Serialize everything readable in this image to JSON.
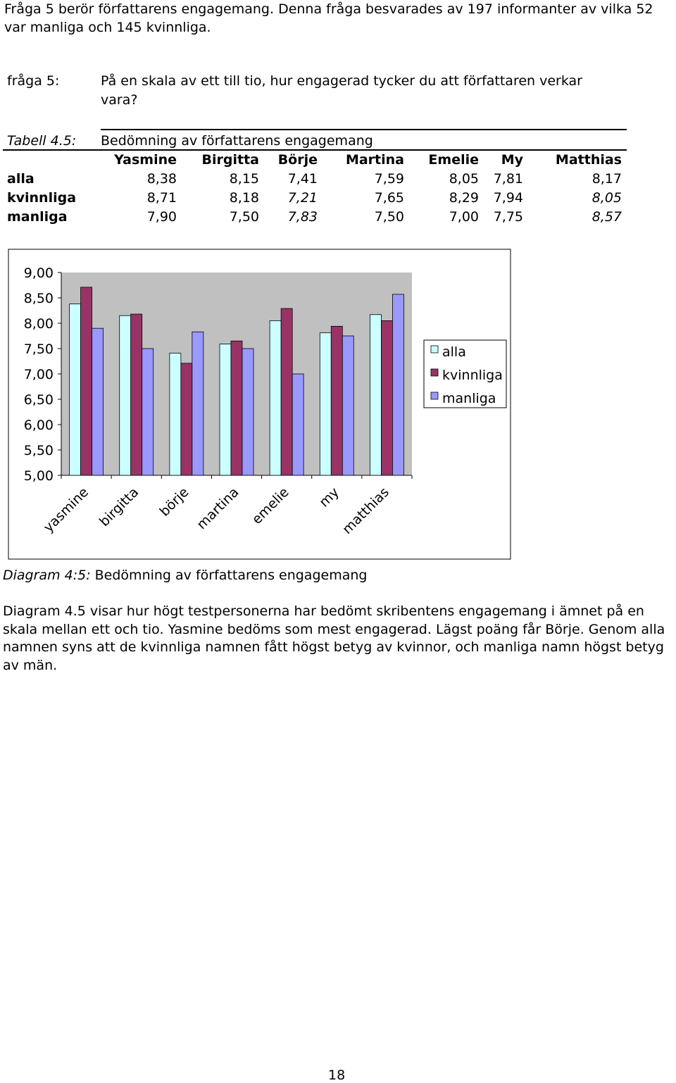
{
  "intro": "Fråga 5 berör författarens engagemang. Denna fråga besvarades av 197 informanter av vilka 52 var manliga och 145 kvinnliga.",
  "question": {
    "label": "fråga 5:",
    "text": "På en skala av ett till tio, hur engagerad tycker du att författaren verkar vara?"
  },
  "table": {
    "label": "Tabell 4.5:",
    "title": "Bedömning av författarens engagemang",
    "columns": [
      "Yasmine",
      "Birgitta",
      "Börje",
      "Martina",
      "Emelie",
      "My",
      "Matthias"
    ],
    "rows": [
      {
        "label": "alla",
        "values": [
          "8,38",
          "8,15",
          "7,41",
          "7,59",
          "8,05",
          "7,81",
          "8,17"
        ],
        "italic": [
          false,
          false,
          false,
          false,
          false,
          false,
          false
        ]
      },
      {
        "label": "kvinnliga",
        "values": [
          "8,71",
          "8,18",
          "7,21",
          "7,65",
          "8,29",
          "7,94",
          "8,05"
        ],
        "italic": [
          false,
          false,
          true,
          false,
          false,
          false,
          true
        ]
      },
      {
        "label": "manliga",
        "values": [
          "7,90",
          "7,50",
          "7,83",
          "7,50",
          "7,00",
          "7,75",
          "8,57"
        ],
        "italic": [
          false,
          false,
          true,
          false,
          false,
          false,
          true
        ]
      }
    ]
  },
  "chart_data": {
    "type": "bar",
    "categories": [
      "yasmine",
      "birgitta",
      "börje",
      "martina",
      "emelie",
      "my",
      "matthias"
    ],
    "series": [
      {
        "name": "alla",
        "values": [
          8.38,
          8.15,
          7.41,
          7.59,
          8.05,
          7.81,
          8.17
        ],
        "color": "#ccffff"
      },
      {
        "name": "kvinnliga",
        "values": [
          8.71,
          8.18,
          7.21,
          7.65,
          8.29,
          7.94,
          8.05
        ],
        "color": "#993366"
      },
      {
        "name": "manliga",
        "values": [
          7.9,
          7.5,
          7.83,
          7.5,
          7.0,
          7.75,
          8.57
        ],
        "color": "#9999ff"
      }
    ],
    "ylim": [
      5.0,
      9.0
    ],
    "yticks": [
      "9,00",
      "8,50",
      "8,00",
      "7,50",
      "7,00",
      "6,50",
      "6,00",
      "5,50",
      "5,00"
    ],
    "plot_background": "#c0c0c0",
    "legend_position": "right",
    "grid": false,
    "title": "",
    "xlabel": "",
    "ylabel": ""
  },
  "caption": {
    "prefix": "Diagram 4:5:",
    "text": " Bedömning av författarens engagemang"
  },
  "body_text": "Diagram 4.5 visar hur högt testpersonerna har bedömt skribentens engagemang i ämnet på en skala mellan ett och tio. Yasmine bedöms som mest engagerad. Lägst poäng får Börje. Genom alla namnen syns att de kvinnliga namnen fått högst betyg av kvinnor, och manliga namn högst betyg av män.",
  "page_number": "18"
}
